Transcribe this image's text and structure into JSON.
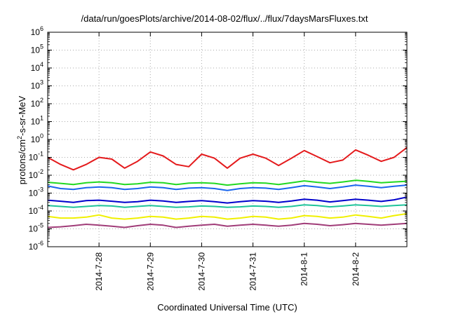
{
  "chart_data": {
    "type": "line",
    "title": "/data/run/goesPlots/archive/2014-08-02/flux/../flux/7daysMarsFluxes.txt",
    "xlabel": "Coordinated Universal Time (UTC)",
    "ylabel": {
      "pre": "protons/cm",
      "sup": "2",
      "post": "-s-sr-MeV"
    },
    "yscale": "log",
    "ylim": [
      1e-06,
      1000000.0
    ],
    "ytick_exponents": [
      -6,
      -5,
      -4,
      -3,
      -2,
      -1,
      0,
      1,
      2,
      3,
      4,
      5,
      6
    ],
    "xlim": [
      "2014-07-27T00:00",
      "2014-08-03T00:00"
    ],
    "xticks": [
      "2014-7-28",
      "2014-7-29",
      "2014-7-30",
      "2014-7-31",
      "2014-8-1",
      "2014-8-2"
    ],
    "grid": true,
    "x": [
      "2014-07-27T00:00",
      "2014-07-27T06:00",
      "2014-07-27T12:00",
      "2014-07-27T18:00",
      "2014-07-28T00:00",
      "2014-07-28T06:00",
      "2014-07-28T12:00",
      "2014-07-28T18:00",
      "2014-07-29T00:00",
      "2014-07-29T06:00",
      "2014-07-29T12:00",
      "2014-07-29T18:00",
      "2014-07-30T00:00",
      "2014-07-30T06:00",
      "2014-07-30T12:00",
      "2014-07-30T18:00",
      "2014-07-31T00:00",
      "2014-07-31T06:00",
      "2014-07-31T12:00",
      "2014-07-31T18:00",
      "2014-08-01T00:00",
      "2014-08-01T06:00",
      "2014-08-01T12:00",
      "2014-08-01T18:00",
      "2014-08-02T00:00",
      "2014-08-02T06:00",
      "2014-08-02T12:00",
      "2014-08-02T18:00",
      "2014-08-03T00:00"
    ],
    "series": [
      {
        "color": "#e41a1c",
        "values": [
          0.1,
          0.04,
          0.02,
          0.04,
          0.1,
          0.08,
          0.025,
          0.06,
          0.2,
          0.12,
          0.04,
          0.03,
          0.15,
          0.09,
          0.025,
          0.09,
          0.15,
          0.09,
          0.035,
          0.09,
          0.24,
          0.11,
          0.05,
          0.07,
          0.26,
          0.13,
          0.06,
          0.1,
          0.35
        ]
      },
      {
        "color": "#22d822",
        "values": [
          0.004,
          0.0035,
          0.003,
          0.0038,
          0.0042,
          0.0038,
          0.003,
          0.0033,
          0.004,
          0.0038,
          0.003,
          0.0036,
          0.0038,
          0.0035,
          0.0028,
          0.0033,
          0.0038,
          0.0036,
          0.003,
          0.0038,
          0.0048,
          0.004,
          0.0035,
          0.0042,
          0.0052,
          0.0045,
          0.0038,
          0.0042,
          0.0046
        ]
      },
      {
        "color": "#1a66ee",
        "values": [
          0.0025,
          0.0018,
          0.0016,
          0.002,
          0.0022,
          0.002,
          0.0016,
          0.0018,
          0.0022,
          0.002,
          0.0016,
          0.0019,
          0.002,
          0.0018,
          0.0014,
          0.0018,
          0.002,
          0.0019,
          0.0016,
          0.002,
          0.0026,
          0.0022,
          0.0018,
          0.0022,
          0.0028,
          0.0024,
          0.002,
          0.0024,
          0.0028
        ]
      },
      {
        "color": "#0000cc",
        "values": [
          0.0004,
          0.00035,
          0.0003,
          0.00038,
          0.0004,
          0.00035,
          0.0003,
          0.00033,
          0.0004,
          0.00036,
          0.0003,
          0.00034,
          0.00038,
          0.00033,
          0.00028,
          0.00033,
          0.00038,
          0.00035,
          0.0003,
          0.00036,
          0.00045,
          0.0004,
          0.00032,
          0.00038,
          0.00045,
          0.0004,
          0.00034,
          0.00042,
          0.0006
        ]
      },
      {
        "color": "#1fc49a",
        "values": [
          0.0002,
          0.00018,
          0.00016,
          0.00018,
          0.0002,
          0.00019,
          0.00016,
          0.00018,
          0.0002,
          0.00018,
          0.00016,
          0.00017,
          0.00019,
          0.00018,
          0.00016,
          0.00017,
          0.00019,
          0.00018,
          0.00016,
          0.00018,
          0.00022,
          0.0002,
          0.00017,
          0.00019,
          0.00022,
          0.0002,
          0.00018,
          0.0002,
          0.00022
        ]
      },
      {
        "color": "#f0f000",
        "values": [
          5e-05,
          4e-05,
          4e-05,
          4.5e-05,
          6e-05,
          4e-05,
          3.5e-05,
          4e-05,
          5e-05,
          4.5e-05,
          3.5e-05,
          4e-05,
          5e-05,
          4.5e-05,
          3.5e-05,
          4e-05,
          5e-05,
          4.5e-05,
          3.5e-05,
          4e-05,
          5.5e-05,
          5e-05,
          4e-05,
          4.5e-05,
          6e-05,
          5e-05,
          4e-05,
          5.5e-05,
          7e-05
        ]
      },
      {
        "color": "#a03c78",
        "values": [
          1.2e-05,
          1.3e-05,
          1.5e-05,
          1.8e-05,
          1.6e-05,
          1.4e-05,
          1.2e-05,
          1.5e-05,
          1.8e-05,
          1.6e-05,
          1.2e-05,
          1.4e-05,
          1.6e-05,
          1.8e-05,
          1.4e-05,
          1.6e-05,
          1.8e-05,
          1.6e-05,
          1.4e-05,
          1.6e-05,
          2e-05,
          1.8e-05,
          1.5e-05,
          1.7e-05,
          2e-05,
          1.8e-05,
          1.6e-05,
          1.8e-05,
          2e-05
        ]
      }
    ]
  }
}
